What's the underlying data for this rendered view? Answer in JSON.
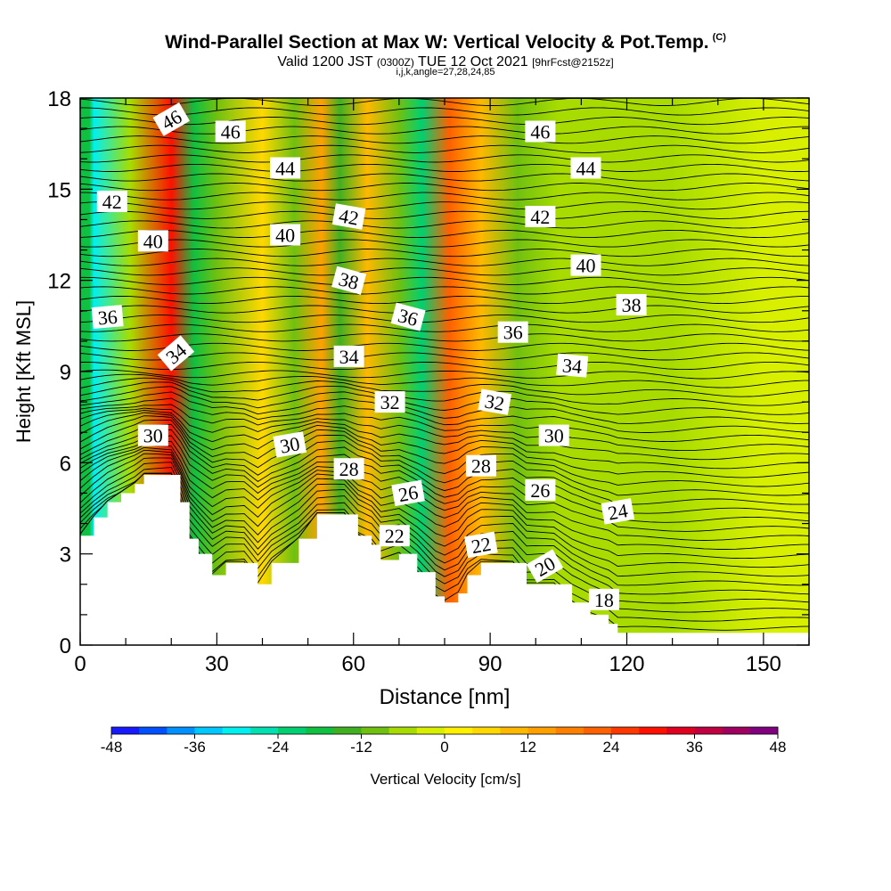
{
  "header": {
    "title": "Wind-Parallel Section at Max W: Vertical Velocity & Pot.Temp.",
    "title_mark": "(C)",
    "subtitle_main1": "Valid 1200 JST",
    "subtitle_small1": "(0300Z)",
    "subtitle_main2": "TUE 12 Oct 2021",
    "subtitle_small2": "[9hrFcst@2152z]",
    "subtitle2": "i,j,k,angle=27,28,24,85"
  },
  "chart_data": {
    "type": "heatmap",
    "xlabel": "Distance [nm]",
    "ylabel": "Height [Kft MSL]",
    "xlim": [
      0,
      160
    ],
    "ylim": [
      0,
      18
    ],
    "x_ticks": [
      0,
      30,
      60,
      90,
      120,
      150
    ],
    "y_ticks": [
      0,
      3,
      6,
      9,
      12,
      15,
      18
    ],
    "colorbar": {
      "label": "Vertical Velocity [cm/s]",
      "min": -48,
      "max": 48,
      "step": 4,
      "tick_values": [
        -48,
        -36,
        -24,
        -12,
        0,
        12,
        24,
        36,
        48
      ],
      "colors": [
        "#1919ff",
        "#0050ff",
        "#0090ff",
        "#00c8ff",
        "#00f0f0",
        "#00e0b0",
        "#00d070",
        "#10c040",
        "#40b020",
        "#70c010",
        "#a8dc00",
        "#d8f000",
        "#fff000",
        "#ffd800",
        "#ffb800",
        "#ffa000",
        "#ff8000",
        "#ff6000",
        "#ff3800",
        "#ff1000",
        "#e00020",
        "#c00040",
        "#a00060",
        "#800080"
      ]
    },
    "velocity_bands": [
      {
        "x": 2,
        "w": -20
      },
      {
        "x": 3,
        "w": -30
      },
      {
        "x": 11,
        "w": -8
      },
      {
        "x": 20,
        "w": 30
      },
      {
        "x": 25,
        "w": -20
      },
      {
        "x": 30,
        "w": -12
      },
      {
        "x": 40,
        "w": 6
      },
      {
        "x": 47,
        "w": -10
      },
      {
        "x": 53,
        "w": 14
      },
      {
        "x": 57,
        "w": -14
      },
      {
        "x": 63,
        "w": 10
      },
      {
        "x": 70,
        "w": -10
      },
      {
        "x": 75,
        "w": -22
      },
      {
        "x": 81,
        "w": 20
      },
      {
        "x": 88,
        "w": 8
      },
      {
        "x": 96,
        "w": -10
      },
      {
        "x": 105,
        "w": -5
      },
      {
        "x": 130,
        "w": -6
      },
      {
        "x": 150,
        "w": -4
      }
    ],
    "terrain": [
      [
        0,
        3.6
      ],
      [
        3,
        4.2
      ],
      [
        6,
        4.7
      ],
      [
        9,
        5.0
      ],
      [
        12,
        5.3
      ],
      [
        14,
        5.6
      ],
      [
        20,
        5.6
      ],
      [
        22,
        4.7
      ],
      [
        24,
        3.5
      ],
      [
        26,
        3.0
      ],
      [
        29,
        2.3
      ],
      [
        32,
        2.7
      ],
      [
        36,
        2.7
      ],
      [
        39,
        2.0
      ],
      [
        42,
        2.7
      ],
      [
        48,
        3.5
      ],
      [
        52,
        4.3
      ],
      [
        58,
        4.3
      ],
      [
        61,
        3.6
      ],
      [
        64,
        3.3
      ],
      [
        66,
        2.8
      ],
      [
        70,
        3.0
      ],
      [
        74,
        2.4
      ],
      [
        78,
        1.6
      ],
      [
        80,
        1.4
      ],
      [
        83,
        1.7
      ],
      [
        85,
        2.3
      ],
      [
        88,
        2.7
      ],
      [
        95,
        2.7
      ],
      [
        98,
        2.0
      ],
      [
        104,
        2.0
      ],
      [
        108,
        1.4
      ],
      [
        112,
        1.0
      ],
      [
        116,
        0.7
      ],
      [
        118,
        0.4
      ],
      [
        158,
        0.4
      ]
    ],
    "contour_labels": [
      {
        "text": "46",
        "x": 20,
        "y": 17.3,
        "angle": -30
      },
      {
        "text": "46",
        "x": 33,
        "y": 16.9,
        "angle": 0
      },
      {
        "text": "46",
        "x": 101,
        "y": 16.9,
        "angle": 0
      },
      {
        "text": "44",
        "x": 45,
        "y": 15.7,
        "angle": 0
      },
      {
        "text": "44",
        "x": 111,
        "y": 15.7,
        "angle": 0
      },
      {
        "text": "42",
        "x": 7,
        "y": 14.6,
        "angle": 0
      },
      {
        "text": "42",
        "x": 59,
        "y": 14.1,
        "angle": 10
      },
      {
        "text": "42",
        "x": 101,
        "y": 14.1,
        "angle": 0
      },
      {
        "text": "40",
        "x": 16,
        "y": 13.3,
        "angle": 0
      },
      {
        "text": "40",
        "x": 45,
        "y": 13.5,
        "angle": 0
      },
      {
        "text": "40",
        "x": 111,
        "y": 12.5,
        "angle": 0
      },
      {
        "text": "38",
        "x": 59,
        "y": 12.0,
        "angle": 15
      },
      {
        "text": "38",
        "x": 121,
        "y": 11.2,
        "angle": 0
      },
      {
        "text": "36",
        "x": 6,
        "y": 10.8,
        "angle": -5
      },
      {
        "text": "36",
        "x": 72,
        "y": 10.8,
        "angle": 15
      },
      {
        "text": "36",
        "x": 95,
        "y": 10.3,
        "angle": 0
      },
      {
        "text": "34",
        "x": 21,
        "y": 9.6,
        "angle": -40
      },
      {
        "text": "34",
        "x": 59,
        "y": 9.5,
        "angle": 0
      },
      {
        "text": "34",
        "x": 108,
        "y": 9.2,
        "angle": 5
      },
      {
        "text": "32",
        "x": 68,
        "y": 8.0,
        "angle": 0
      },
      {
        "text": "32",
        "x": 91,
        "y": 8.0,
        "angle": 10
      },
      {
        "text": "30",
        "x": 16,
        "y": 6.9,
        "angle": 0
      },
      {
        "text": "30",
        "x": 46,
        "y": 6.6,
        "angle": -10
      },
      {
        "text": "30",
        "x": 104,
        "y": 6.9,
        "angle": 0
      },
      {
        "text": "28",
        "x": 59,
        "y": 5.8,
        "angle": 0
      },
      {
        "text": "28",
        "x": 88,
        "y": 5.9,
        "angle": 0
      },
      {
        "text": "26",
        "x": 72,
        "y": 5.0,
        "angle": -10
      },
      {
        "text": "26",
        "x": 101,
        "y": 5.1,
        "angle": 0
      },
      {
        "text": "24",
        "x": 118,
        "y": 4.4,
        "angle": -10
      },
      {
        "text": "22",
        "x": 69,
        "y": 3.6,
        "angle": 0
      },
      {
        "text": "22",
        "x": 88,
        "y": 3.3,
        "angle": -10
      },
      {
        "text": "20",
        "x": 102,
        "y": 2.6,
        "angle": -30
      },
      {
        "text": "18",
        "x": 115,
        "y": 1.5,
        "angle": 0
      }
    ]
  }
}
